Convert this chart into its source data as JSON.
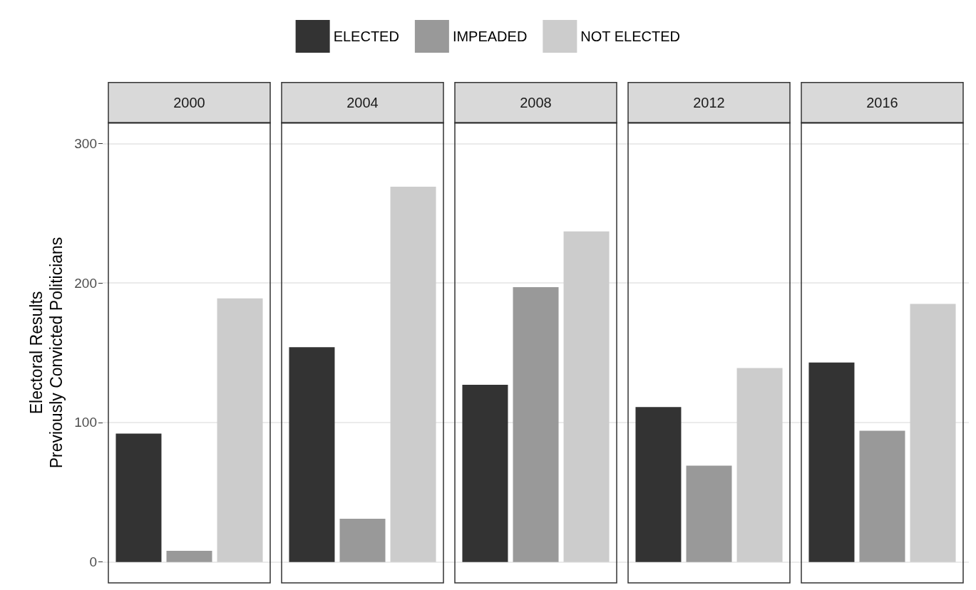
{
  "chart_data": {
    "type": "bar",
    "ylabel": "Electoral Results\nPreviously Convicted Politicians",
    "categories": [
      "2000",
      "2004",
      "2008",
      "2012",
      "2016"
    ],
    "ylim": [
      -15,
      315
    ],
    "yticks": [
      0,
      100,
      200,
      300
    ],
    "grid": "y",
    "legend": "top",
    "series": [
      {
        "name": "ELECTED",
        "color": "#333333",
        "values": [
          92,
          154,
          127,
          111,
          143
        ]
      },
      {
        "name": "IMPEADED",
        "color": "#999999",
        "values": [
          8,
          31,
          197,
          69,
          94
        ]
      },
      {
        "name": "NOT ELECTED",
        "color": "#cccccc",
        "values": [
          189,
          269,
          237,
          139,
          185
        ]
      }
    ]
  }
}
